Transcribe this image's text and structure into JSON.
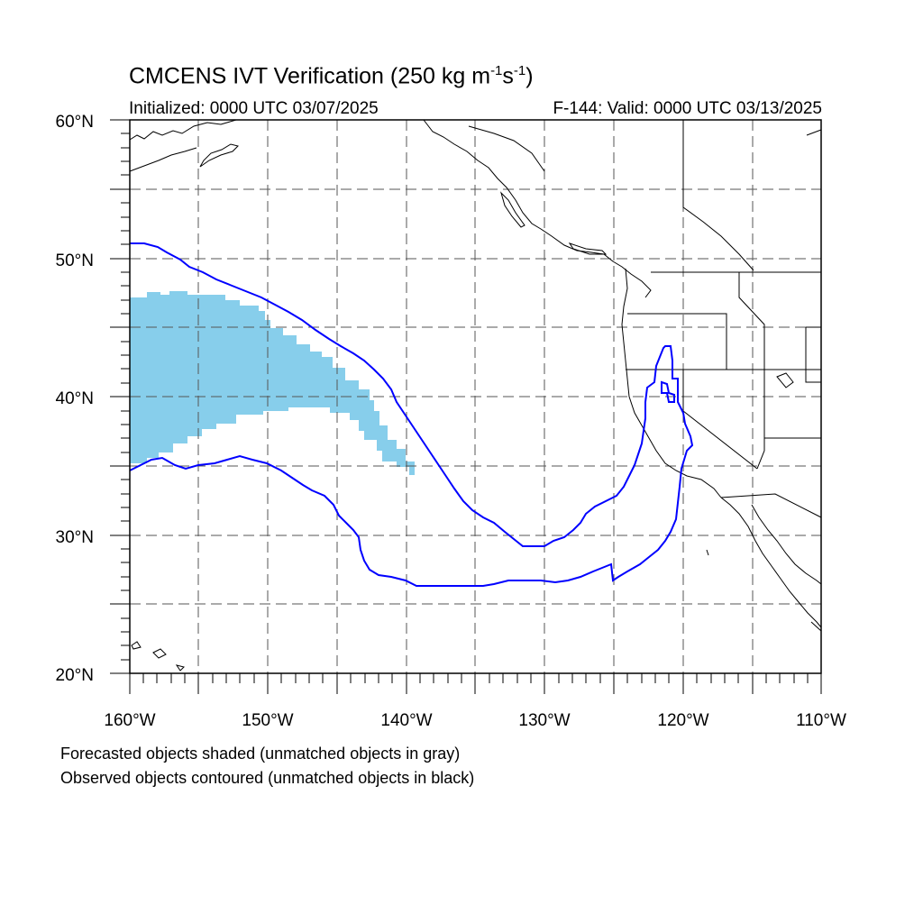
{
  "title": {
    "main": "CMCENS IVT Verification (250 kg m",
    "sup1": "-1",
    "mid": "s",
    "sup2": "-1",
    "end": ")"
  },
  "subtitle_left": "Initialized: 0000 UTC 03/07/2025",
  "subtitle_right": "F-144: Valid: 0000 UTC 03/13/2025",
  "axes": {
    "lat_labels": [
      "60°N",
      "50°N",
      "40°N",
      "30°N",
      "20°N"
    ],
    "lon_labels": [
      "160°W",
      "150°W",
      "140°W",
      "130°W",
      "120°W",
      "110°W"
    ],
    "lat_range": [
      20,
      60
    ],
    "lon_range": [
      -160,
      -110
    ]
  },
  "captions": {
    "line1": "Forecasted objects shaded (unmatched objects in gray)",
    "line2": "Observed objects contoured (unmatched objects in black)"
  },
  "colors": {
    "forecast_fill": "#87ceeb",
    "observed_contour": "#0000ff",
    "coastline": "#000000",
    "grid": "#555555"
  }
}
